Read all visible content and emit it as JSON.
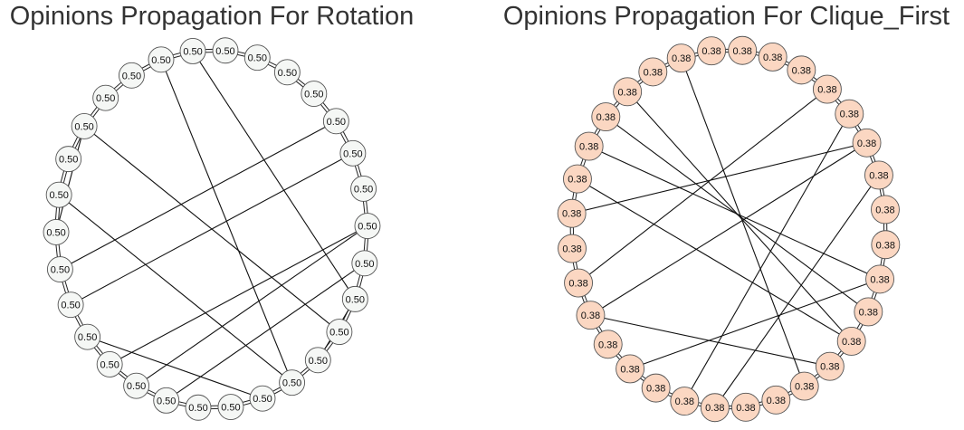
{
  "graphs": [
    {
      "title": "Opinions Propagation For Rotation",
      "node_fill": "#f5f7f5",
      "node_stroke": "#555555",
      "node_label": "0.50",
      "node_count": 30,
      "nodes": [
        {
          "label": "0.50"
        },
        {
          "label": "0.50"
        },
        {
          "label": "0.50"
        },
        {
          "label": "0.50"
        },
        {
          "label": "0.50"
        },
        {
          "label": "0.50"
        },
        {
          "label": "0.50"
        },
        {
          "label": "0.50"
        },
        {
          "label": "0.50"
        },
        {
          "label": "0.50"
        },
        {
          "label": "0.50"
        },
        {
          "label": "0.50"
        },
        {
          "label": "0.50"
        },
        {
          "label": "0.50"
        },
        {
          "label": "0.50"
        },
        {
          "label": "0.50"
        },
        {
          "label": "0.50"
        },
        {
          "label": "0.50"
        },
        {
          "label": "0.50"
        },
        {
          "label": "0.50"
        },
        {
          "label": "0.50"
        },
        {
          "label": "0.50"
        },
        {
          "label": "0.50"
        },
        {
          "label": "0.50"
        },
        {
          "label": "0.50"
        },
        {
          "label": "0.50"
        },
        {
          "label": "0.50"
        },
        {
          "label": "0.50"
        },
        {
          "label": "0.50"
        },
        {
          "label": "0.50"
        }
      ],
      "chords": [
        [
          4,
          28
        ],
        [
          6,
          19
        ],
        [
          3,
          22
        ],
        [
          7,
          10
        ],
        [
          1,
          23
        ],
        [
          2,
          22
        ],
        [
          8,
          27
        ],
        [
          5,
          20
        ],
        [
          13,
          27
        ],
        [
          14,
          24
        ],
        [
          24,
          26
        ],
        [
          10,
          25
        ]
      ]
    },
    {
      "title": "Opinions Propagation For Clique_First",
      "node_fill": "#fbd7c2",
      "node_stroke": "#555555",
      "node_label": "0.38",
      "node_count": 32,
      "nodes": [
        {
          "label": "0.38"
        },
        {
          "label": "0.38"
        },
        {
          "label": "0.38"
        },
        {
          "label": "0.38"
        },
        {
          "label": "0.38"
        },
        {
          "label": "0.38"
        },
        {
          "label": "0.38"
        },
        {
          "label": "0.38"
        },
        {
          "label": "0.38"
        },
        {
          "label": "0.38"
        },
        {
          "label": "0.38"
        },
        {
          "label": "0.38"
        },
        {
          "label": "0.38"
        },
        {
          "label": "0.38"
        },
        {
          "label": "0.38"
        },
        {
          "label": "0.38"
        },
        {
          "label": "0.38"
        },
        {
          "label": "0.38"
        },
        {
          "label": "0.38"
        },
        {
          "label": "0.38"
        },
        {
          "label": "0.38"
        },
        {
          "label": "0.38"
        },
        {
          "label": "0.38"
        },
        {
          "label": "0.38"
        },
        {
          "label": "0.38"
        },
        {
          "label": "0.38"
        },
        {
          "label": "0.38"
        },
        {
          "label": "0.38"
        },
        {
          "label": "0.38"
        },
        {
          "label": "0.38"
        },
        {
          "label": "0.38"
        },
        {
          "label": "0.38"
        }
      ],
      "chords": [
        [
          5,
          28
        ],
        [
          6,
          19
        ],
        [
          3,
          25
        ],
        [
          8,
          21
        ],
        [
          1,
          20
        ],
        [
          0,
          22
        ],
        [
          10,
          25
        ],
        [
          5,
          21
        ],
        [
          14,
          29
        ],
        [
          12,
          27
        ],
        [
          9,
          27
        ],
        [
          11,
          26
        ]
      ]
    }
  ]
}
